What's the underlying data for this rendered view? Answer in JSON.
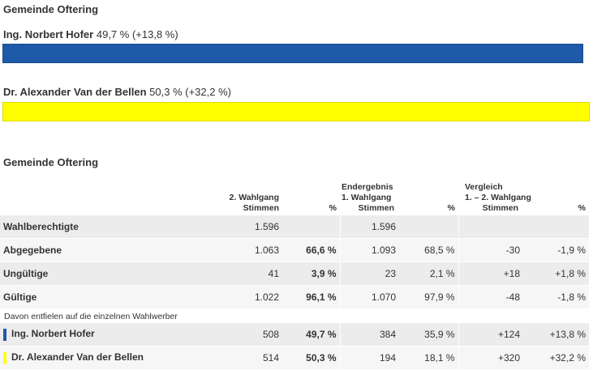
{
  "top": {
    "title": "Gemeinde Oftering",
    "candidates": [
      {
        "name": "Ing. Norbert Hofer",
        "result": "49,7 % (+13,8 %)",
        "share": 0.497,
        "color": "#1e5aa8"
      },
      {
        "name": "Dr. Alexander Van der Bellen",
        "result": "50,3 % (+32,2 %)",
        "share": 0.503,
        "color": "#ffff00"
      }
    ]
  },
  "table": {
    "title": "Gemeinde Oftering",
    "headers": {
      "col1": "2. Wahlgang",
      "col1_sub": "Stimmen",
      "col2": "%",
      "group2": "Endergebnis",
      "col3": "1. Wahlgang",
      "col3_sub": "Stimmen",
      "col4": "%",
      "group3": "Vergleich",
      "col5": "1. – 2. Wahlgang",
      "col5_sub": "Stimmen",
      "col6": "%"
    },
    "rows": [
      {
        "label": "Wahlberechtigte",
        "c1": "1.596",
        "c2": "",
        "c3": "1.596",
        "c4": "",
        "c5": "",
        "c6": ""
      },
      {
        "label": "Abgegebene",
        "c1": "1.063",
        "c2": "66,6 %",
        "c3": "1.093",
        "c4": "68,5 %",
        "c5": "-30",
        "c6": "-1,9 %"
      },
      {
        "label": "Ungültige",
        "c1": "41",
        "c2": "3,9 %",
        "c3": "23",
        "c4": "2,1 %",
        "c5": "+18",
        "c6": "+1,8 %"
      },
      {
        "label": "Gültige",
        "c1": "1.022",
        "c2": "96,1 %",
        "c3": "1.070",
        "c4": "97,9 %",
        "c5": "-48",
        "c6": "-1,8 %"
      }
    ],
    "note": "Davon entfielen auf die einzelnen Wahlwerber",
    "candidates": [
      {
        "label": "Ing. Norbert Hofer",
        "c1": "508",
        "c2": "49,7 %",
        "c3": "384",
        "c4": "35,9 %",
        "c5": "+124",
        "c6": "+13,8 %",
        "color": "#1e5aa8"
      },
      {
        "label": "Dr. Alexander Van der Bellen",
        "c1": "514",
        "c2": "50,3 %",
        "c3": "194",
        "c4": "18,1 %",
        "c5": "+320",
        "c6": "+32,2 %",
        "color": "#ffff00"
      }
    ]
  }
}
